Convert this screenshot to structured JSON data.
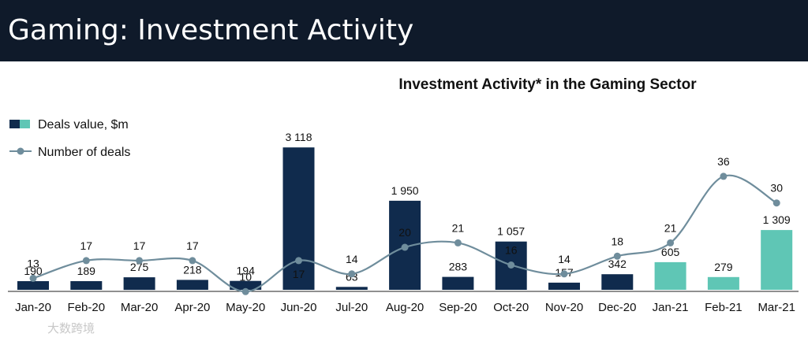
{
  "header": {
    "title": "Gaming: Investment Activity"
  },
  "watermark": "大数跨境",
  "chart_data": {
    "type": "bar+line",
    "title": "Investment Activity* in the Gaming Sector",
    "categories": [
      "Jan-20",
      "Feb-20",
      "Mar-20",
      "Apr-20",
      "May-20",
      "Jun-20",
      "Jul-20",
      "Aug-20",
      "Sep-20",
      "Oct-20",
      "Nov-20",
      "Dec-20",
      "Jan-21",
      "Feb-21",
      "Mar-21"
    ],
    "series": [
      {
        "name": "Deals value, $m",
        "type": "bar",
        "values": [
          190,
          189,
          275,
          218,
          194,
          3118,
          63,
          1950,
          283,
          1057,
          157,
          342,
          605,
          279,
          1309
        ],
        "labels": [
          "190",
          "189",
          "275",
          "218",
          "194",
          "3 118",
          "63",
          "1 950",
          "283",
          "1 057",
          "157",
          "342",
          "605",
          "279",
          "1 309"
        ],
        "colors": {
          "2020": "#102b4d",
          "2021": "#5fc6b5"
        }
      },
      {
        "name": "Number of deals",
        "type": "line",
        "values": [
          13,
          17,
          17,
          17,
          10,
          17,
          14,
          20,
          21,
          16,
          14,
          18,
          21,
          36,
          30
        ],
        "color": "#6f8d9c"
      }
    ],
    "legend": "top-left",
    "grid": false
  }
}
